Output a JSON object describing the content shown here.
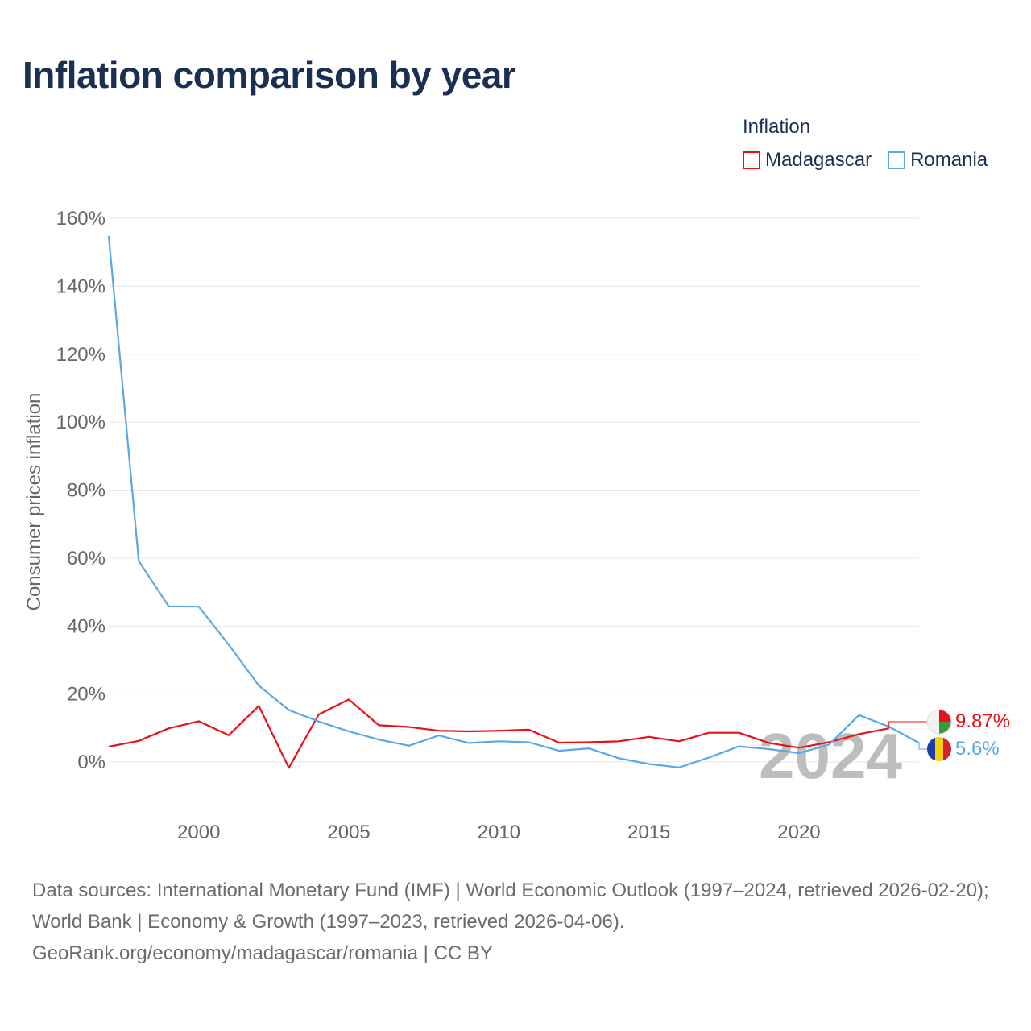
{
  "title": "Inflation comparison by year",
  "legend": {
    "title": "Inflation",
    "items": [
      {
        "label": "Madagascar",
        "color": "#e8101a"
      },
      {
        "label": "Romania",
        "color": "#5aa7e6"
      }
    ]
  },
  "year_watermark": "2024",
  "end_labels": {
    "madagascar": "9.87%",
    "romania": "5.6%"
  },
  "footer": {
    "sources": "Data sources: International Monetary Fund (IMF) | World Economic Outlook (1997–2024, retrieved 2026-02-20); World Bank | Economy & Growth (1997–2023, retrieved 2026-04-06).",
    "credit": "GeoRank.org/economy/madagascar/romania | CC BY"
  },
  "chart_data": {
    "type": "line",
    "title": "Inflation comparison by year",
    "xlabel": "",
    "ylabel": "Consumer prices inflation",
    "xlim": [
      1997,
      2024
    ],
    "ylim": [
      -15,
      165
    ],
    "y_ticks": [
      0,
      20,
      40,
      60,
      80,
      100,
      120,
      140,
      160
    ],
    "y_tick_labels": [
      "0%",
      "20%",
      "40%",
      "60%",
      "80%",
      "100%",
      "120%",
      "140%",
      "160%"
    ],
    "x_ticks": [
      2000,
      2005,
      2010,
      2015,
      2020
    ],
    "x_tick_labels": [
      "2000",
      "2005",
      "2010",
      "2015",
      "2020"
    ],
    "grid": true,
    "legend_position": "top-right",
    "series": [
      {
        "name": "Madagascar",
        "color": "#e8101a",
        "x": [
          1997,
          1998,
          1999,
          2000,
          2001,
          2002,
          2003,
          2004,
          2005,
          2006,
          2007,
          2008,
          2009,
          2010,
          2011,
          2012,
          2013,
          2014,
          2015,
          2016,
          2017,
          2018,
          2019,
          2020,
          2021,
          2022,
          2023
        ],
        "values": [
          4.5,
          6.2,
          9.9,
          12.0,
          7.9,
          16.5,
          -1.7,
          14.0,
          18.4,
          10.8,
          10.3,
          9.2,
          9.0,
          9.2,
          9.5,
          5.7,
          5.8,
          6.1,
          7.4,
          6.1,
          8.6,
          8.6,
          5.6,
          4.2,
          5.8,
          8.2,
          9.9
        ]
      },
      {
        "name": "Romania",
        "color": "#5aa7e6",
        "x": [
          1997,
          1998,
          1999,
          2000,
          2001,
          2002,
          2003,
          2004,
          2005,
          2006,
          2007,
          2008,
          2009,
          2010,
          2011,
          2012,
          2013,
          2014,
          2015,
          2016,
          2017,
          2018,
          2019,
          2020,
          2021,
          2022,
          2023,
          2024
        ],
        "values": [
          154.8,
          59.1,
          45.8,
          45.7,
          34.5,
          22.5,
          15.3,
          11.9,
          9.0,
          6.6,
          4.8,
          7.8,
          5.6,
          6.1,
          5.8,
          3.3,
          4.0,
          1.1,
          -0.6,
          -1.6,
          1.3,
          4.6,
          3.8,
          2.6,
          5.1,
          13.8,
          10.4,
          5.6
        ]
      }
    ]
  }
}
